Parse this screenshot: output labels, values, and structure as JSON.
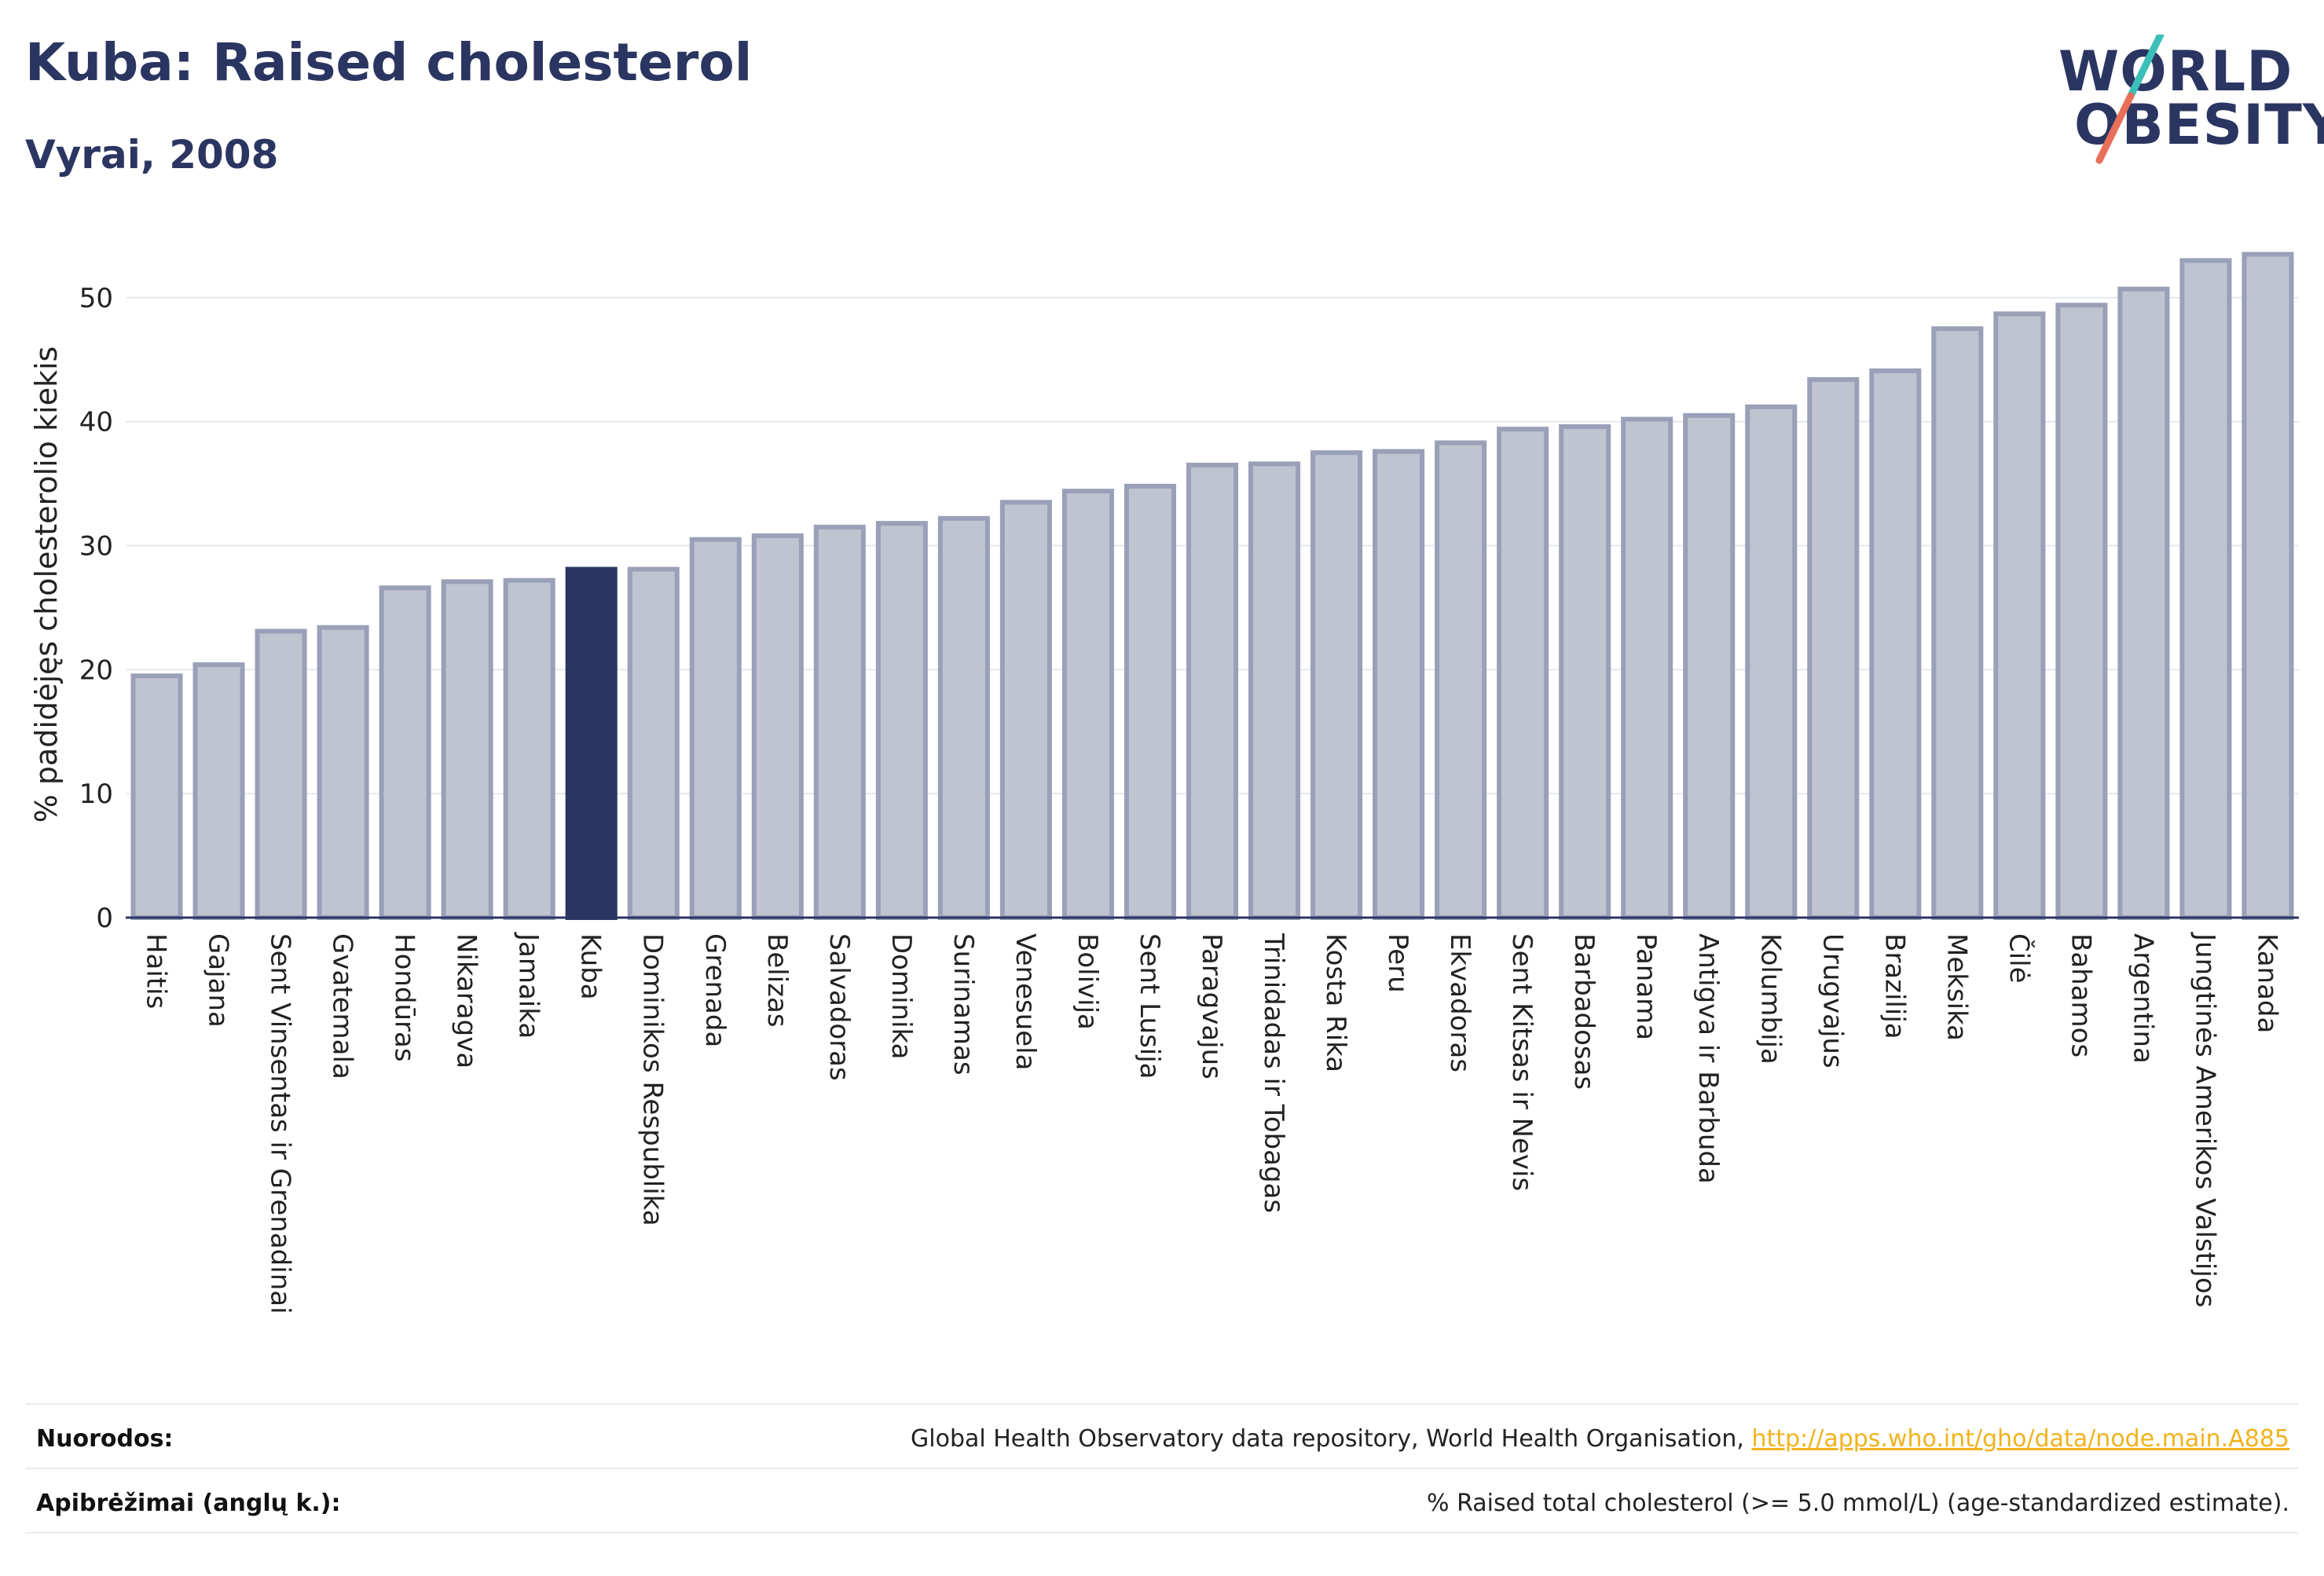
{
  "header": {
    "title": "Kuba: Raised cholesterol",
    "subtitle": "Vyrai, 2008"
  },
  "logo": {
    "line1": "WORLD",
    "line2": "OBESITY",
    "colors": {
      "text": "#2b3561",
      "slash_top": "#3bbfb8",
      "slash_bottom": "#e8705a"
    }
  },
  "chart_data": {
    "type": "bar",
    "ylabel": "% padidėjęs cholesterolio kiekis",
    "xlabel": "",
    "ylim": [
      0,
      55
    ],
    "yticks": [
      0,
      10,
      20,
      30,
      40,
      50
    ],
    "grid": true,
    "highlight": "Kuba",
    "colors": {
      "bar": "#c0c3d0",
      "bar_edge": "#9aa0b8",
      "highlight": "#2b3561"
    },
    "categories": [
      "Haitis",
      "Gajana",
      "Sent Vinsentas ir Grenadinai",
      "Gvatemala",
      "Hondūras",
      "Nikaragva",
      "Jamaika",
      "Kuba",
      "Dominikos Respublika",
      "Grenada",
      "Belizas",
      "Salvadoras",
      "Dominika",
      "Surinamas",
      "Venesuela",
      "Bolivija",
      "Sent Lusija",
      "Paragvajus",
      "Trinidadas ir Tobagas",
      "Kosta Rika",
      "Peru",
      "Ekvadoras",
      "Sent Kitsas ir Nevis",
      "Barbadosas",
      "Panama",
      "Antigva ir Barbuda",
      "Kolumbija",
      "Urugvajus",
      "Brazilija",
      "Meksika",
      "Čilė",
      "Bahamos",
      "Argentina",
      "Jungtinės Amerikos Valstijos",
      "Kanada"
    ],
    "values": [
      19.5,
      20.4,
      23.1,
      23.4,
      26.6,
      27.1,
      27.2,
      28.1,
      28.1,
      30.5,
      30.8,
      31.5,
      31.8,
      32.2,
      33.5,
      34.4,
      34.8,
      36.5,
      36.6,
      37.5,
      37.6,
      38.3,
      39.4,
      39.6,
      40.2,
      40.5,
      41.2,
      43.4,
      44.1,
      47.5,
      48.7,
      49.4,
      50.7,
      53.0,
      53.5
    ]
  },
  "footer": {
    "sources_label": "Nuorodos:",
    "sources_text": "Global Health Observatory data repository, World Health Organisation, ",
    "sources_link": "http://apps.who.int/gho/data/node.main.A885",
    "definitions_label": "Apibrėžimai (anglų k.):",
    "definitions_text": "% Raised total cholesterol (>= 5.0 mmol/L) (age-standardized estimate)."
  }
}
